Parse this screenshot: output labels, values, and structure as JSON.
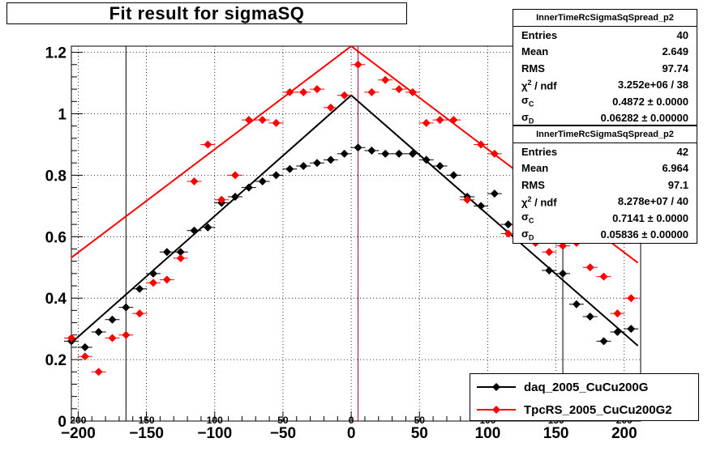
{
  "window": {
    "title": "Fit result for sigmaSQ"
  },
  "stats": [
    {
      "name": "InnerTimeRcSigmaSqSpread_p2",
      "rows": [
        {
          "label": "Entries",
          "value": "40"
        },
        {
          "label": "Mean",
          "value": "2.649"
        },
        {
          "label": "RMS",
          "value": "97.74"
        },
        {
          "label": "χ² / ndf",
          "value": "3.252e+06 / 38"
        },
        {
          "label": "σC",
          "value": "0.4872 ± 0.0000"
        },
        {
          "label": "σD",
          "value": "0.06282 ± 0.00000"
        }
      ]
    },
    {
      "name": "InnerTimeRcSigmaSqSpread_p2",
      "rows": [
        {
          "label": "Entries",
          "value": "42"
        },
        {
          "label": "Mean",
          "value": "6.964"
        },
        {
          "label": "RMS",
          "value": "97.1"
        },
        {
          "label": "χ² / ndf",
          "value": "8.278e+07 / 40"
        },
        {
          "label": "σC",
          "value": "0.7141 ± 0.0000"
        },
        {
          "label": "σD",
          "value": "0.05836 ± 0.00000"
        }
      ]
    }
  ],
  "chart_data": {
    "type": "scatter",
    "title": "Fit result for sigmaSQ",
    "xlabel": "",
    "ylabel": "",
    "xlim": [
      -205,
      212
    ],
    "ylim": [
      0,
      1.22
    ],
    "x_ticks": [
      -200,
      -150,
      -100,
      -50,
      0,
      50,
      100,
      150,
      200
    ],
    "x_tick_labels": [
      "−200",
      "−150",
      "−100",
      "−50",
      "0",
      "50",
      "100",
      "150",
      "200"
    ],
    "x_ticks_inner_labels": [
      "200",
      "150",
      "100",
      "50",
      "0",
      "50",
      "100",
      "150",
      "200"
    ],
    "y_ticks": [
      0,
      0.2,
      0.4,
      0.6,
      0.8,
      1,
      1.2
    ],
    "y_tick_labels": [
      "0",
      "0.2",
      "0.4",
      "0.6",
      "0.8",
      "1",
      "1.2"
    ],
    "grid": true,
    "legend_position": "bottom-right",
    "series": [
      {
        "name": "daq_2005_CuCu200G",
        "color": "#000000",
        "x": [
          -205,
          -195,
          -185,
          -175,
          -165,
          -155,
          -145,
          -135,
          -125,
          -115,
          -105,
          -95,
          -85,
          -75,
          -65,
          -55,
          -45,
          -35,
          -25,
          -15,
          -5,
          5,
          15,
          25,
          35,
          45,
          55,
          65,
          75,
          85,
          95,
          105,
          115,
          125,
          135,
          145,
          155,
          165,
          175,
          185,
          195,
          205
        ],
        "y": [
          0.26,
          0.24,
          0.29,
          0.33,
          0.37,
          0.43,
          0.48,
          0.55,
          0.55,
          0.62,
          0.63,
          0.71,
          0.73,
          0.76,
          0.78,
          0.8,
          0.82,
          0.83,
          0.84,
          0.85,
          0.87,
          0.89,
          0.88,
          0.87,
          0.87,
          0.87,
          0.85,
          0.83,
          0.8,
          0.73,
          0.7,
          0.74,
          0.64,
          0.61,
          0.58,
          0.49,
          0.48,
          0.38,
          0.34,
          0.26,
          0.29,
          0.3
        ],
        "fit": {
          "x": [
            -210,
            0,
            210
          ],
          "y": [
            0.235,
            1.06,
            0.245
          ]
        }
      },
      {
        "name": "TpcRS_2005_CuCu200G2",
        "color": "#ff0000",
        "x": [
          -205,
          -195,
          -185,
          -175,
          -165,
          -155,
          -145,
          -135,
          -125,
          -115,
          -105,
          -95,
          -85,
          -75,
          -65,
          -55,
          -45,
          -35,
          -25,
          -15,
          -5,
          5,
          15,
          25,
          35,
          45,
          55,
          65,
          75,
          85,
          95,
          105,
          115,
          125,
          135,
          145,
          155,
          165,
          175,
          185,
          195,
          205
        ],
        "y": [
          0.27,
          0.21,
          0.16,
          0.27,
          0.28,
          0.35,
          0.45,
          0.46,
          0.53,
          0.78,
          0.9,
          0.72,
          0.8,
          0.98,
          0.98,
          0.97,
          1.07,
          1.07,
          1.08,
          1.02,
          1.06,
          1.16,
          1.07,
          1.11,
          1.08,
          1.07,
          0.97,
          0.98,
          0.98,
          0.72,
          0.9,
          0.87,
          0.61,
          0.6,
          0.58,
          0.55,
          0.57,
          0.58,
          0.5,
          0.47,
          0.35,
          0.4
        ],
        "fit": {
          "x": [
            -210,
            0,
            210
          ],
          "y": [
            0.515,
            1.22,
            0.515
          ]
        }
      }
    ],
    "vertical_lines": [
      {
        "x": -165,
        "color": "#000000"
      },
      {
        "x": 5,
        "color": "#b00040"
      },
      {
        "x": 155,
        "color": "#000000"
      }
    ]
  }
}
